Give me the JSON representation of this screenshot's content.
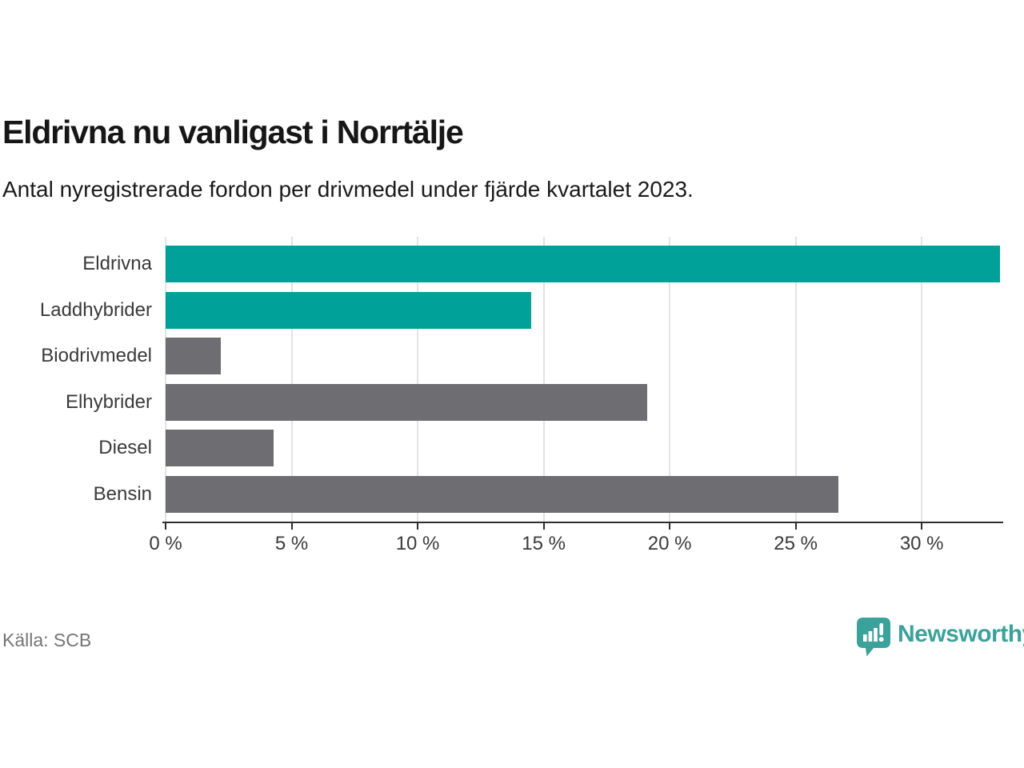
{
  "chart_data": {
    "type": "bar",
    "orientation": "horizontal",
    "title": "Eldrivna nu vanligast i Norrtälje",
    "subtitle": "Antal nyregistrerade fordon per drivmedel under fjärde kvartalet 2023.",
    "categories": [
      "Eldrivna",
      "Laddhybrider",
      "Biodrivmedel",
      "Elhybrider",
      "Diesel",
      "Bensin"
    ],
    "values": [
      33.1,
      14.5,
      2.2,
      19.1,
      4.3,
      26.7
    ],
    "unit": "%",
    "xlim": [
      0,
      33.2
    ],
    "ticks": [
      0,
      5,
      10,
      15,
      20,
      25,
      30
    ],
    "tick_labels": [
      "0 %",
      "5 %",
      "10 %",
      "15 %",
      "20 %",
      "25 %",
      "30 %"
    ],
    "bar_colors": [
      "#00a199",
      "#00a199",
      "#6d6d72",
      "#6d6d72",
      "#6d6d72",
      "#6d6d72"
    ],
    "grid": true,
    "legend": false,
    "xlabel": "",
    "ylabel": ""
  },
  "footer": {
    "source": "Källa: SCB",
    "brand": "Newsworthy"
  },
  "colors": {
    "accent_teal": "#00a199",
    "bar_gray": "#6d6d72",
    "gridline": "#e3e3e5",
    "axis": "#2e2e30",
    "text": "#1a1a1a",
    "muted_text": "#757575",
    "logo_teal": "#3ba29b"
  }
}
